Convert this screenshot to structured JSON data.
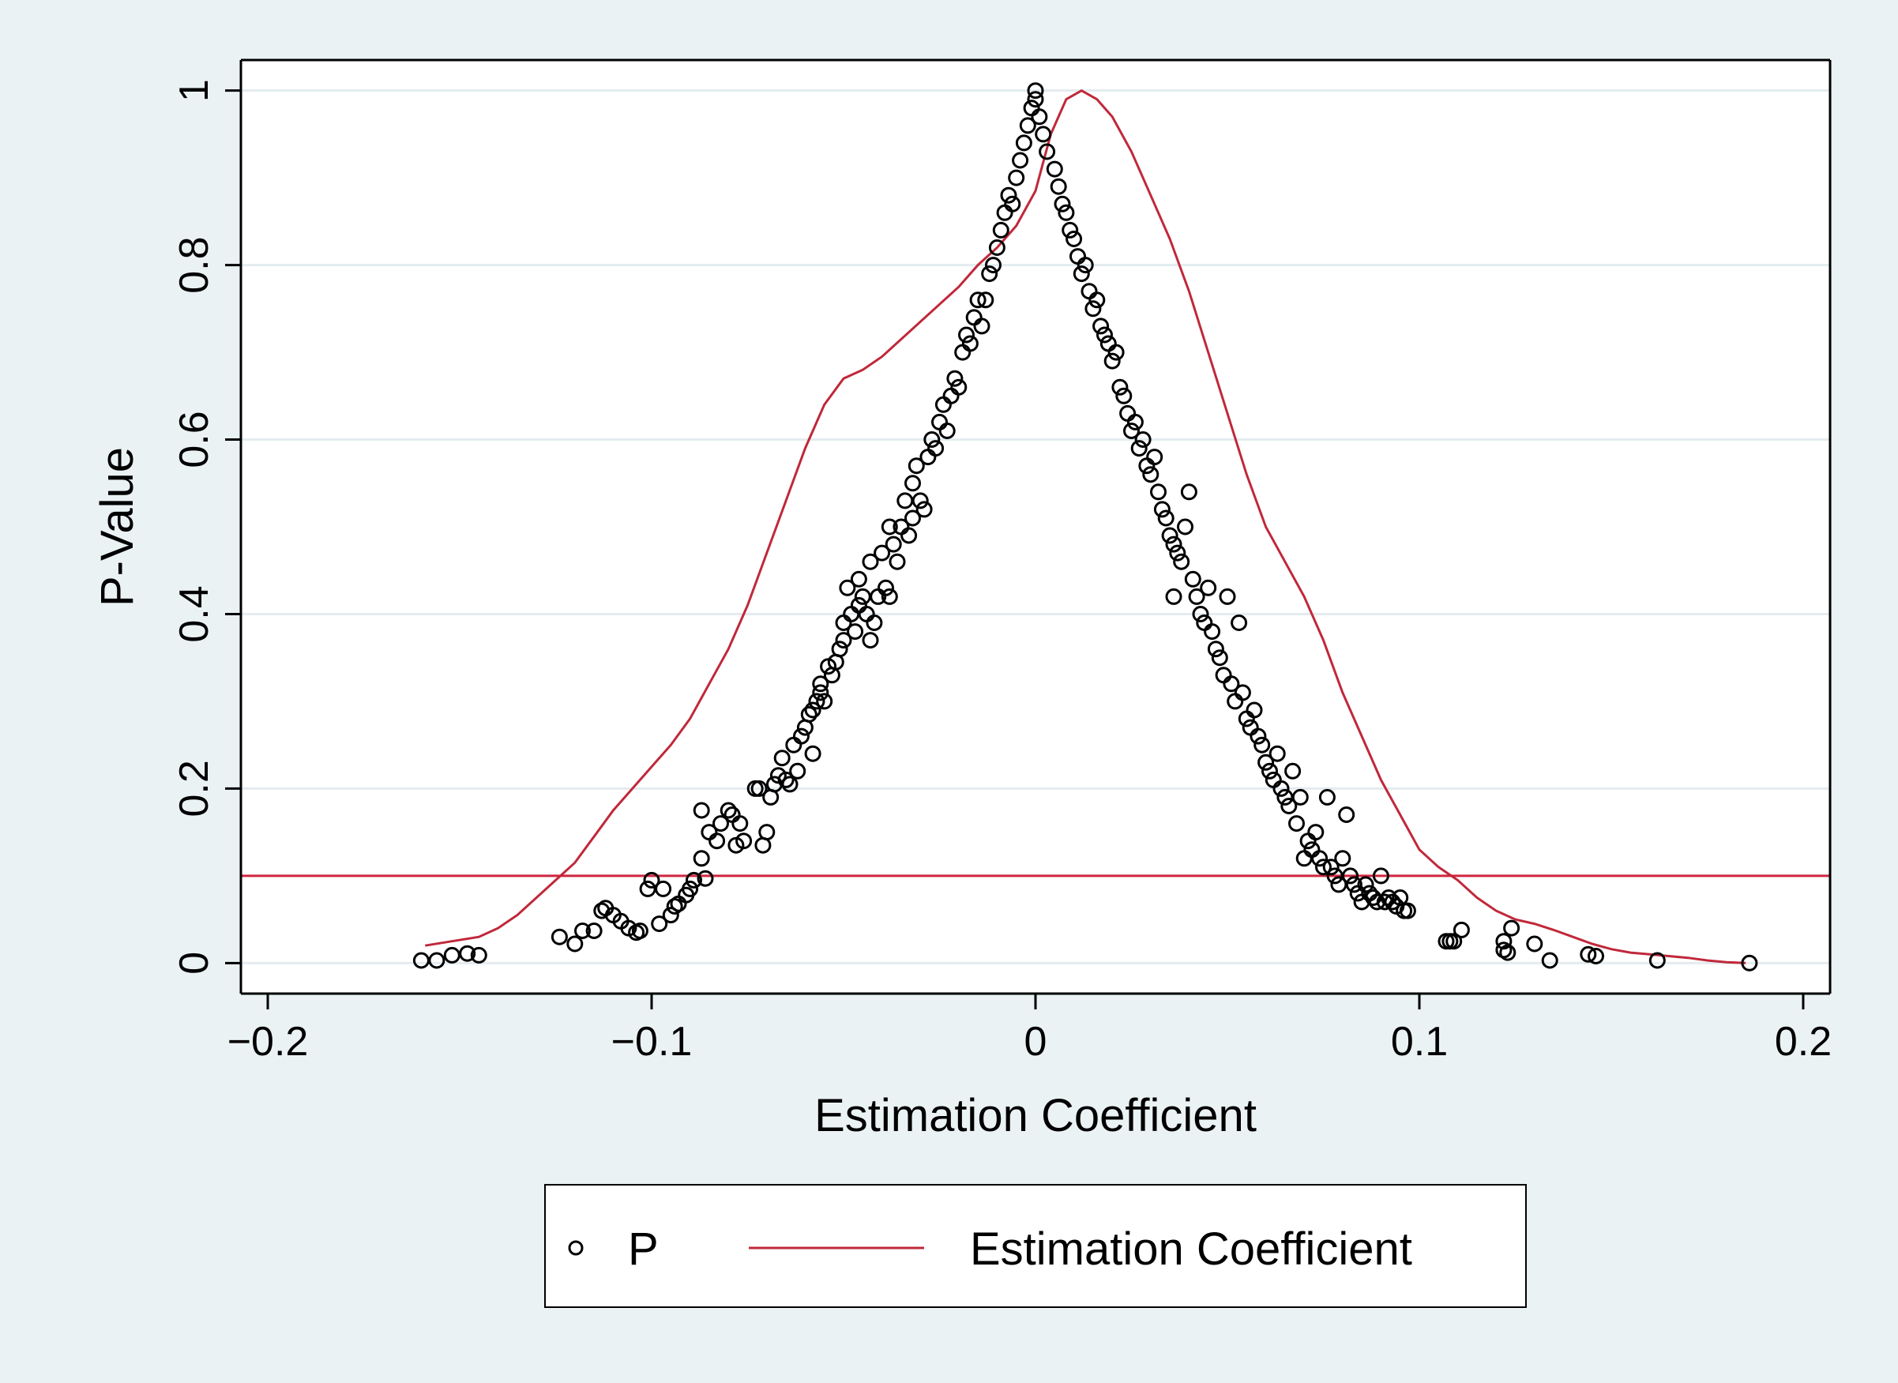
{
  "chart_data": {
    "type": "scatter",
    "xlabel": "Estimation Coefficient",
    "ylabel": "P-Value",
    "xlim": [
      -0.207,
      0.207
    ],
    "ylim": [
      -0.035,
      1.035
    ],
    "xticks": [
      {
        "v": -0.2,
        "label": "-0.2"
      },
      {
        "v": -0.1,
        "label": "-0.1"
      },
      {
        "v": 0,
        "label": "0"
      },
      {
        "v": 0.1,
        "label": "0.1"
      },
      {
        "v": 0.2,
        "label": "0.2"
      }
    ],
    "yticks": [
      {
        "v": 0,
        "label": "0"
      },
      {
        "v": 0.2,
        "label": "0.2"
      },
      {
        "v": 0.4,
        "label": "0.4"
      },
      {
        "v": 0.6,
        "label": "0.6"
      },
      {
        "v": 0.8,
        "label": "0.8"
      },
      {
        "v": 1,
        "label": "1"
      }
    ],
    "grid": true,
    "reference_line": {
      "y": 0.1,
      "color": "#d0263f"
    },
    "series": [
      {
        "name": "P",
        "kind": "scatter",
        "marker": "hollow-circle",
        "color": "#000000",
        "points": [
          [
            -0.16,
            0.003
          ],
          [
            -0.156,
            0.003
          ],
          [
            -0.152,
            0.009
          ],
          [
            -0.148,
            0.011
          ],
          [
            -0.145,
            0.009
          ],
          [
            -0.124,
            0.03
          ],
          [
            -0.12,
            0.022
          ],
          [
            -0.118,
            0.037
          ],
          [
            -0.115,
            0.037
          ],
          [
            -0.113,
            0.06
          ],
          [
            -0.112,
            0.063
          ],
          [
            -0.11,
            0.055
          ],
          [
            -0.108,
            0.048
          ],
          [
            -0.106,
            0.04
          ],
          [
            -0.104,
            0.035
          ],
          [
            -0.103,
            0.037
          ],
          [
            -0.101,
            0.085
          ],
          [
            -0.1,
            0.095
          ],
          [
            -0.098,
            0.045
          ],
          [
            -0.097,
            0.085
          ],
          [
            -0.095,
            0.055
          ],
          [
            -0.094,
            0.065
          ],
          [
            -0.093,
            0.068
          ],
          [
            -0.091,
            0.078
          ],
          [
            -0.09,
            0.085
          ],
          [
            -0.089,
            0.095
          ],
          [
            -0.086,
            0.097
          ],
          [
            -0.087,
            0.12
          ],
          [
            -0.087,
            0.175
          ],
          [
            -0.085,
            0.15
          ],
          [
            -0.083,
            0.14
          ],
          [
            -0.082,
            0.16
          ],
          [
            -0.08,
            0.175
          ],
          [
            -0.079,
            0.17
          ],
          [
            -0.078,
            0.135
          ],
          [
            -0.077,
            0.16
          ],
          [
            -0.076,
            0.14
          ],
          [
            -0.073,
            0.2
          ],
          [
            -0.072,
            0.2
          ],
          [
            -0.071,
            0.135
          ],
          [
            -0.07,
            0.15
          ],
          [
            -0.069,
            0.19
          ],
          [
            -0.068,
            0.205
          ],
          [
            -0.067,
            0.215
          ],
          [
            -0.066,
            0.235
          ],
          [
            -0.065,
            0.21
          ],
          [
            -0.064,
            0.205
          ],
          [
            -0.063,
            0.25
          ],
          [
            -0.062,
            0.22
          ],
          [
            -0.061,
            0.26
          ],
          [
            -0.06,
            0.27
          ],
          [
            -0.059,
            0.285
          ],
          [
            -0.058,
            0.24
          ],
          [
            -0.058,
            0.29
          ],
          [
            -0.057,
            0.3
          ],
          [
            -0.056,
            0.31
          ],
          [
            -0.056,
            0.32
          ],
          [
            -0.055,
            0.3
          ],
          [
            -0.054,
            0.34
          ],
          [
            -0.053,
            0.33
          ],
          [
            -0.052,
            0.345
          ],
          [
            -0.051,
            0.36
          ],
          [
            -0.05,
            0.37
          ],
          [
            -0.05,
            0.39
          ],
          [
            -0.049,
            0.43
          ],
          [
            -0.048,
            0.4
          ],
          [
            -0.047,
            0.38
          ],
          [
            -0.046,
            0.41
          ],
          [
            -0.046,
            0.44
          ],
          [
            -0.045,
            0.42
          ],
          [
            -0.044,
            0.4
          ],
          [
            -0.043,
            0.37
          ],
          [
            -0.043,
            0.46
          ],
          [
            -0.042,
            0.39
          ],
          [
            -0.041,
            0.42
          ],
          [
            -0.04,
            0.47
          ],
          [
            -0.039,
            0.43
          ],
          [
            -0.038,
            0.42
          ],
          [
            -0.038,
            0.5
          ],
          [
            -0.037,
            0.48
          ],
          [
            -0.036,
            0.46
          ],
          [
            -0.035,
            0.5
          ],
          [
            -0.034,
            0.53
          ],
          [
            -0.033,
            0.49
          ],
          [
            -0.032,
            0.51
          ],
          [
            -0.032,
            0.55
          ],
          [
            -0.031,
            0.57
          ],
          [
            -0.03,
            0.53
          ],
          [
            -0.029,
            0.52
          ],
          [
            -0.028,
            0.58
          ],
          [
            -0.027,
            0.6
          ],
          [
            -0.026,
            0.59
          ],
          [
            -0.025,
            0.62
          ],
          [
            -0.024,
            0.64
          ],
          [
            -0.023,
            0.61
          ],
          [
            -0.022,
            0.65
          ],
          [
            -0.021,
            0.67
          ],
          [
            -0.02,
            0.66
          ],
          [
            -0.019,
            0.7
          ],
          [
            -0.018,
            0.72
          ],
          [
            -0.017,
            0.71
          ],
          [
            -0.016,
            0.74
          ],
          [
            -0.015,
            0.76
          ],
          [
            -0.014,
            0.73
          ],
          [
            -0.013,
            0.76
          ],
          [
            -0.012,
            0.79
          ],
          [
            -0.011,
            0.8
          ],
          [
            -0.01,
            0.82
          ],
          [
            -0.009,
            0.84
          ],
          [
            -0.008,
            0.86
          ],
          [
            -0.007,
            0.88
          ],
          [
            -0.006,
            0.87
          ],
          [
            -0.005,
            0.9
          ],
          [
            -0.004,
            0.92
          ],
          [
            -0.003,
            0.94
          ],
          [
            -0.002,
            0.96
          ],
          [
            -0.001,
            0.98
          ],
          [
            0,
            1.0
          ],
          [
            0,
            0.99
          ],
          [
            0.001,
            0.97
          ],
          [
            0.002,
            0.95
          ],
          [
            0.003,
            0.93
          ],
          [
            0.005,
            0.91
          ],
          [
            0.006,
            0.89
          ],
          [
            0.007,
            0.87
          ],
          [
            0.008,
            0.86
          ],
          [
            0.009,
            0.84
          ],
          [
            0.01,
            0.83
          ],
          [
            0.011,
            0.81
          ],
          [
            0.012,
            0.79
          ],
          [
            0.013,
            0.8
          ],
          [
            0.014,
            0.77
          ],
          [
            0.015,
            0.75
          ],
          [
            0.016,
            0.76
          ],
          [
            0.017,
            0.73
          ],
          [
            0.018,
            0.72
          ],
          [
            0.019,
            0.71
          ],
          [
            0.02,
            0.69
          ],
          [
            0.021,
            0.7
          ],
          [
            0.022,
            0.66
          ],
          [
            0.023,
            0.65
          ],
          [
            0.024,
            0.63
          ],
          [
            0.025,
            0.61
          ],
          [
            0.026,
            0.62
          ],
          [
            0.027,
            0.59
          ],
          [
            0.028,
            0.6
          ],
          [
            0.029,
            0.57
          ],
          [
            0.03,
            0.56
          ],
          [
            0.031,
            0.58
          ],
          [
            0.032,
            0.54
          ],
          [
            0.033,
            0.52
          ],
          [
            0.034,
            0.51
          ],
          [
            0.035,
            0.49
          ],
          [
            0.036,
            0.48
          ],
          [
            0.036,
            0.42
          ],
          [
            0.037,
            0.47
          ],
          [
            0.038,
            0.46
          ],
          [
            0.039,
            0.5
          ],
          [
            0.04,
            0.54
          ],
          [
            0.041,
            0.44
          ],
          [
            0.042,
            0.42
          ],
          [
            0.043,
            0.4
          ],
          [
            0.044,
            0.39
          ],
          [
            0.045,
            0.43
          ],
          [
            0.046,
            0.38
          ],
          [
            0.047,
            0.36
          ],
          [
            0.048,
            0.35
          ],
          [
            0.049,
            0.33
          ],
          [
            0.05,
            0.42
          ],
          [
            0.051,
            0.32
          ],
          [
            0.052,
            0.3
          ],
          [
            0.053,
            0.39
          ],
          [
            0.054,
            0.31
          ],
          [
            0.055,
            0.28
          ],
          [
            0.056,
            0.27
          ],
          [
            0.057,
            0.29
          ],
          [
            0.058,
            0.26
          ],
          [
            0.059,
            0.25
          ],
          [
            0.06,
            0.23
          ],
          [
            0.061,
            0.22
          ],
          [
            0.062,
            0.21
          ],
          [
            0.063,
            0.24
          ],
          [
            0.064,
            0.2
          ],
          [
            0.065,
            0.19
          ],
          [
            0.066,
            0.18
          ],
          [
            0.067,
            0.22
          ],
          [
            0.068,
            0.16
          ],
          [
            0.069,
            0.19
          ],
          [
            0.07,
            0.12
          ],
          [
            0.071,
            0.14
          ],
          [
            0.072,
            0.13
          ],
          [
            0.073,
            0.15
          ],
          [
            0.074,
            0.12
          ],
          [
            0.075,
            0.11
          ],
          [
            0.076,
            0.19
          ],
          [
            0.077,
            0.11
          ],
          [
            0.078,
            0.1
          ],
          [
            0.079,
            0.09
          ],
          [
            0.08,
            0.12
          ],
          [
            0.081,
            0.17
          ],
          [
            0.082,
            0.1
          ],
          [
            0.083,
            0.09
          ],
          [
            0.084,
            0.08
          ],
          [
            0.085,
            0.07
          ],
          [
            0.086,
            0.09
          ],
          [
            0.087,
            0.08
          ],
          [
            0.088,
            0.075
          ],
          [
            0.089,
            0.07
          ],
          [
            0.09,
            0.1
          ],
          [
            0.091,
            0.07
          ],
          [
            0.092,
            0.075
          ],
          [
            0.093,
            0.07
          ],
          [
            0.094,
            0.065
          ],
          [
            0.095,
            0.075
          ],
          [
            0.096,
            0.06
          ],
          [
            0.097,
            0.06
          ],
          [
            0.107,
            0.025
          ],
          [
            0.108,
            0.025
          ],
          [
            0.109,
            0.025
          ],
          [
            0.111,
            0.038
          ],
          [
            0.122,
            0.025
          ],
          [
            0.122,
            0.015
          ],
          [
            0.123,
            0.012
          ],
          [
            0.124,
            0.04
          ],
          [
            0.13,
            0.022
          ],
          [
            0.134,
            0.003
          ],
          [
            0.144,
            0.01
          ],
          [
            0.146,
            0.008
          ],
          [
            0.162,
            0.003
          ],
          [
            0.186,
            0.0
          ]
        ]
      },
      {
        "name": "Estimation Coefficient",
        "kind": "line",
        "color": "#c0283a",
        "points": [
          [
            -0.159,
            0.02
          ],
          [
            -0.152,
            0.025
          ],
          [
            -0.145,
            0.03
          ],
          [
            -0.14,
            0.04
          ],
          [
            -0.135,
            0.055
          ],
          [
            -0.13,
            0.075
          ],
          [
            -0.125,
            0.095
          ],
          [
            -0.12,
            0.115
          ],
          [
            -0.115,
            0.145
          ],
          [
            -0.11,
            0.175
          ],
          [
            -0.105,
            0.2
          ],
          [
            -0.1,
            0.225
          ],
          [
            -0.095,
            0.25
          ],
          [
            -0.09,
            0.28
          ],
          [
            -0.085,
            0.32
          ],
          [
            -0.08,
            0.36
          ],
          [
            -0.075,
            0.41
          ],
          [
            -0.07,
            0.47
          ],
          [
            -0.065,
            0.53
          ],
          [
            -0.06,
            0.59
          ],
          [
            -0.055,
            0.64
          ],
          [
            -0.05,
            0.67
          ],
          [
            -0.045,
            0.68
          ],
          [
            -0.04,
            0.695
          ],
          [
            -0.035,
            0.715
          ],
          [
            -0.03,
            0.735
          ],
          [
            -0.025,
            0.755
          ],
          [
            -0.02,
            0.775
          ],
          [
            -0.015,
            0.8
          ],
          [
            -0.01,
            0.82
          ],
          [
            -0.005,
            0.845
          ],
          [
            0,
            0.885
          ],
          [
            0.004,
            0.95
          ],
          [
            0.008,
            0.99
          ],
          [
            0.012,
            1.0
          ],
          [
            0.016,
            0.99
          ],
          [
            0.02,
            0.97
          ],
          [
            0.025,
            0.93
          ],
          [
            0.03,
            0.88
          ],
          [
            0.035,
            0.83
          ],
          [
            0.04,
            0.77
          ],
          [
            0.045,
            0.7
          ],
          [
            0.05,
            0.63
          ],
          [
            0.055,
            0.56
          ],
          [
            0.06,
            0.5
          ],
          [
            0.065,
            0.46
          ],
          [
            0.07,
            0.42
          ],
          [
            0.075,
            0.37
          ],
          [
            0.08,
            0.31
          ],
          [
            0.085,
            0.26
          ],
          [
            0.09,
            0.21
          ],
          [
            0.095,
            0.17
          ],
          [
            0.1,
            0.13
          ],
          [
            0.105,
            0.11
          ],
          [
            0.11,
            0.095
          ],
          [
            0.115,
            0.075
          ],
          [
            0.12,
            0.06
          ],
          [
            0.125,
            0.05
          ],
          [
            0.13,
            0.045
          ],
          [
            0.135,
            0.038
          ],
          [
            0.14,
            0.03
          ],
          [
            0.145,
            0.022
          ],
          [
            0.15,
            0.016
          ],
          [
            0.155,
            0.012
          ],
          [
            0.16,
            0.01
          ],
          [
            0.165,
            0.008
          ],
          [
            0.17,
            0.006
          ],
          [
            0.175,
            0.003
          ],
          [
            0.18,
            0.001
          ],
          [
            0.185,
            0.0
          ]
        ]
      }
    ],
    "legend": {
      "position": "bottom",
      "items": [
        "P",
        "Estimation Coefficient"
      ]
    }
  },
  "colors": {
    "outer_background": "#eaf2f3",
    "plot_background": "#ffffff",
    "grid": "#e3ecee",
    "reference_line": "#d0263f"
  }
}
